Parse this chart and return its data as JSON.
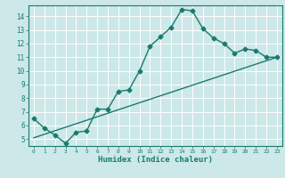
{
  "title": "",
  "xlabel": "Humidex (Indice chaleur)",
  "ylabel": "",
  "bg_color": "#cce8e8",
  "line_color": "#1a7a6e",
  "grid_color": "#ffffff",
  "xlim": [
    -0.5,
    23.5
  ],
  "ylim": [
    4.5,
    14.8
  ],
  "xticks": [
    0,
    1,
    2,
    3,
    4,
    5,
    6,
    7,
    8,
    9,
    10,
    11,
    12,
    13,
    14,
    15,
    16,
    17,
    18,
    19,
    20,
    21,
    22,
    23
  ],
  "yticks": [
    5,
    6,
    7,
    8,
    9,
    10,
    11,
    12,
    13,
    14
  ],
  "curve1_x": [
    0,
    1,
    2,
    3,
    4,
    5,
    6,
    7,
    8,
    9,
    10,
    11,
    12,
    13,
    14,
    15,
    16,
    17,
    18,
    19,
    20,
    21,
    22,
    23
  ],
  "curve1_y": [
    6.5,
    5.8,
    5.3,
    4.7,
    5.5,
    5.6,
    7.2,
    7.2,
    8.5,
    8.6,
    10.0,
    11.8,
    12.5,
    13.2,
    14.5,
    14.4,
    13.1,
    12.4,
    12.0,
    11.3,
    11.6,
    11.5,
    11.0,
    11.0
  ],
  "curve2_x": [
    0,
    23
  ],
  "curve2_y": [
    5.1,
    11.0
  ],
  "marker": "D",
  "markersize": 2.5,
  "linewidth": 1.0
}
